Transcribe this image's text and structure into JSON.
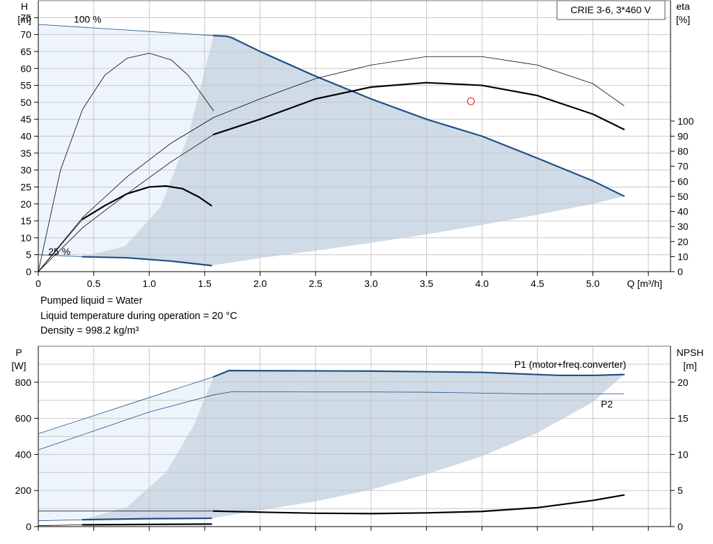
{
  "info": {
    "line1": "Pumped liquid = Water",
    "line2": "Liquid temperature during operation = 20 °C",
    "line3": "Density = 998.2 kg/m³"
  },
  "colors": {
    "area_dark": "#cfdbe6",
    "area_light": "#eef4fb",
    "curve_blue": "#1f4e84",
    "curve_black": "#000000",
    "grid": "#c8c8c8",
    "marker": "#e03030"
  },
  "chart_data": [
    {
      "type": "line",
      "title": "CRIE 3-6, 3*460 V",
      "xlabel": "Q [m³/h]",
      "ylabel": "H\n[m]",
      "y2label": "eta\n[%]",
      "xlim": [
        0,
        5.7
      ],
      "ylim": [
        0,
        80
      ],
      "y2lim": [
        0,
        180
      ],
      "x_ticks": [
        "0",
        "0.5",
        "1.0",
        "1.5",
        "2.0",
        "2.5",
        "3.0",
        "3.5",
        "4.0",
        "4.5",
        "5.0"
      ],
      "y_ticks": [
        "0",
        "5",
        "10",
        "15",
        "20",
        "25",
        "30",
        "35",
        "40",
        "45",
        "50",
        "55",
        "60",
        "65",
        "70",
        "75"
      ],
      "y2_ticks": [
        "0",
        "10",
        "20",
        "30",
        "40",
        "50",
        "60",
        "70",
        "80",
        "90",
        "100"
      ],
      "annotations": [
        {
          "text": "100 %",
          "x": 0.32,
          "y": 74.5
        },
        {
          "text": "25 %",
          "x": 0.09,
          "y": 6.0
        }
      ],
      "duty_point": {
        "x": 3.9,
        "y": 50.3
      },
      "series": [
        {
          "role": "head_100",
          "color": "blue",
          "width": 2.2,
          "x": [
            1.58,
            1.7,
            1.75,
            2.0,
            2.5,
            3.0,
            3.5,
            4.0,
            4.5,
            5.0,
            5.28
          ],
          "y": [
            69.7,
            69.5,
            69.0,
            65.0,
            57.7,
            51.0,
            45.0,
            40.0,
            33.5,
            26.8,
            22.3
          ]
        },
        {
          "role": "head_100_ext",
          "color": "blue",
          "width": 0.8,
          "x": [
            0.0,
            1.58
          ],
          "y": [
            73.0,
            69.7
          ]
        },
        {
          "role": "head_25",
          "color": "blue",
          "width": 2.2,
          "x": [
            0.4,
            0.8,
            1.2,
            1.56
          ],
          "y": [
            4.4,
            4.1,
            3.1,
            1.8
          ]
        },
        {
          "role": "head_25_ext",
          "color": "blue",
          "width": 0.8,
          "x": [
            0.0,
            0.4
          ],
          "y": [
            5.0,
            4.4
          ]
        },
        {
          "role": "eta_100",
          "color": "black",
          "width": 2.2,
          "x": [
            1.58,
            2.0,
            2.5,
            3.0,
            3.5,
            4.0,
            4.5,
            5.0,
            5.28
          ],
          "y": [
            40.5,
            45.0,
            51.0,
            54.5,
            55.8,
            55.0,
            52.0,
            46.5,
            42.0
          ]
        },
        {
          "role": "eta_100_ext",
          "color": "black",
          "width": 0.8,
          "x": [
            0.0,
            0.4,
            0.8,
            1.2,
            1.58
          ],
          "y": [
            0.0,
            13.0,
            23.0,
            32.5,
            40.5
          ]
        },
        {
          "role": "eta_25",
          "color": "black",
          "width": 2.2,
          "x": [
            0.4,
            0.6,
            0.8,
            1.0,
            1.15,
            1.3,
            1.45,
            1.56
          ],
          "y": [
            15.5,
            19.5,
            23.0,
            25.0,
            25.3,
            24.5,
            22.0,
            19.5
          ]
        },
        {
          "role": "eta_25_ext",
          "color": "black",
          "width": 0.8,
          "x": [
            0.0,
            0.4
          ],
          "y": [
            0.0,
            15.5
          ]
        },
        {
          "role": "eta_lower_thin",
          "color": "black",
          "width": 0.8,
          "x": [
            0.0,
            0.4,
            0.8,
            1.2,
            1.58,
            2.0,
            2.5,
            3.0,
            3.5,
            4.0,
            4.5,
            5.0,
            5.28
          ],
          "y": [
            0.0,
            16.0,
            28.0,
            38.0,
            45.5,
            51.0,
            57.0,
            61.0,
            63.5,
            63.5,
            61.0,
            55.5,
            49.0
          ]
        },
        {
          "role": "eta_arc_thin",
          "color": "black",
          "width": 0.8,
          "x": [
            0.0,
            0.2,
            0.4,
            0.6,
            0.8,
            1.0,
            1.2,
            1.35,
            1.58
          ],
          "y": [
            0.0,
            30.0,
            48.0,
            58.0,
            63.0,
            64.5,
            62.5,
            58.0,
            47.5
          ]
        }
      ]
    },
    {
      "type": "line",
      "xlim": [
        0,
        5.7
      ],
      "ylabel": "P\n[W]",
      "y2label": "NPSH\n[m]",
      "ylim": [
        0,
        1000
      ],
      "y2lim": [
        0,
        25
      ],
      "y_ticks": [
        "0",
        "200",
        "400",
        "600",
        "800"
      ],
      "y2_ticks": [
        "0",
        "5",
        "10",
        "15",
        "20"
      ],
      "legend": [
        {
          "text": "P1 (motor+freq.converter)",
          "x": 5.3,
          "y": 900
        },
        {
          "text": "P2",
          "x": 5.18,
          "y": 680
        }
      ],
      "series": [
        {
          "role": "p1_100",
          "color": "blue",
          "width": 2.2,
          "x": [
            1.58,
            1.72,
            2.0,
            3.0,
            4.0,
            4.7,
            5.0,
            5.28
          ],
          "y": [
            830,
            865,
            864,
            862,
            855,
            838,
            838,
            843
          ]
        },
        {
          "role": "p1_100_ext",
          "color": "blue",
          "width": 0.8,
          "x": [
            0.0,
            0.5,
            1.0,
            1.58
          ],
          "y": [
            515,
            615,
            715,
            830
          ]
        },
        {
          "role": "p2_100",
          "color": "blue",
          "width": 0.8,
          "x": [
            0.0,
            0.5,
            1.0,
            1.58,
            1.75,
            2.5,
            3.0,
            3.5,
            4.0,
            4.5,
            5.0,
            5.28
          ],
          "y": [
            425,
            530,
            635,
            730,
            748,
            746,
            746,
            745,
            740,
            735,
            735,
            735
          ]
        },
        {
          "role": "p1_25",
          "color": "blue",
          "width": 2.2,
          "x": [
            0.4,
            1.0,
            1.56
          ],
          "y": [
            38,
            44,
            46
          ]
        },
        {
          "role": "p1_25_ext",
          "color": "blue",
          "width": 0.8,
          "x": [
            0.0,
            0.4
          ],
          "y": [
            32,
            38
          ]
        },
        {
          "role": "p2_25",
          "color": "black",
          "width": 2.2,
          "x": [
            0.4,
            1.0,
            1.56
          ],
          "y": [
            10,
            12,
            14
          ]
        },
        {
          "role": "p2_25_ext",
          "color": "black",
          "width": 0.8,
          "x": [
            0.0,
            0.4
          ],
          "y": [
            5,
            10
          ]
        },
        {
          "role": "npsh",
          "color": "black",
          "width": 2.2,
          "x": [
            1.58,
            2.0,
            2.5,
            3.0,
            3.5,
            4.0,
            4.5,
            5.0,
            5.28
          ],
          "y": [
            86,
            80,
            74,
            72,
            76,
            84,
            105,
            145,
            175
          ]
        },
        {
          "role": "npsh_ext",
          "color": "black",
          "width": 0.8,
          "x": [
            0.0,
            1.58
          ],
          "y": [
            86,
            86
          ]
        }
      ]
    }
  ]
}
